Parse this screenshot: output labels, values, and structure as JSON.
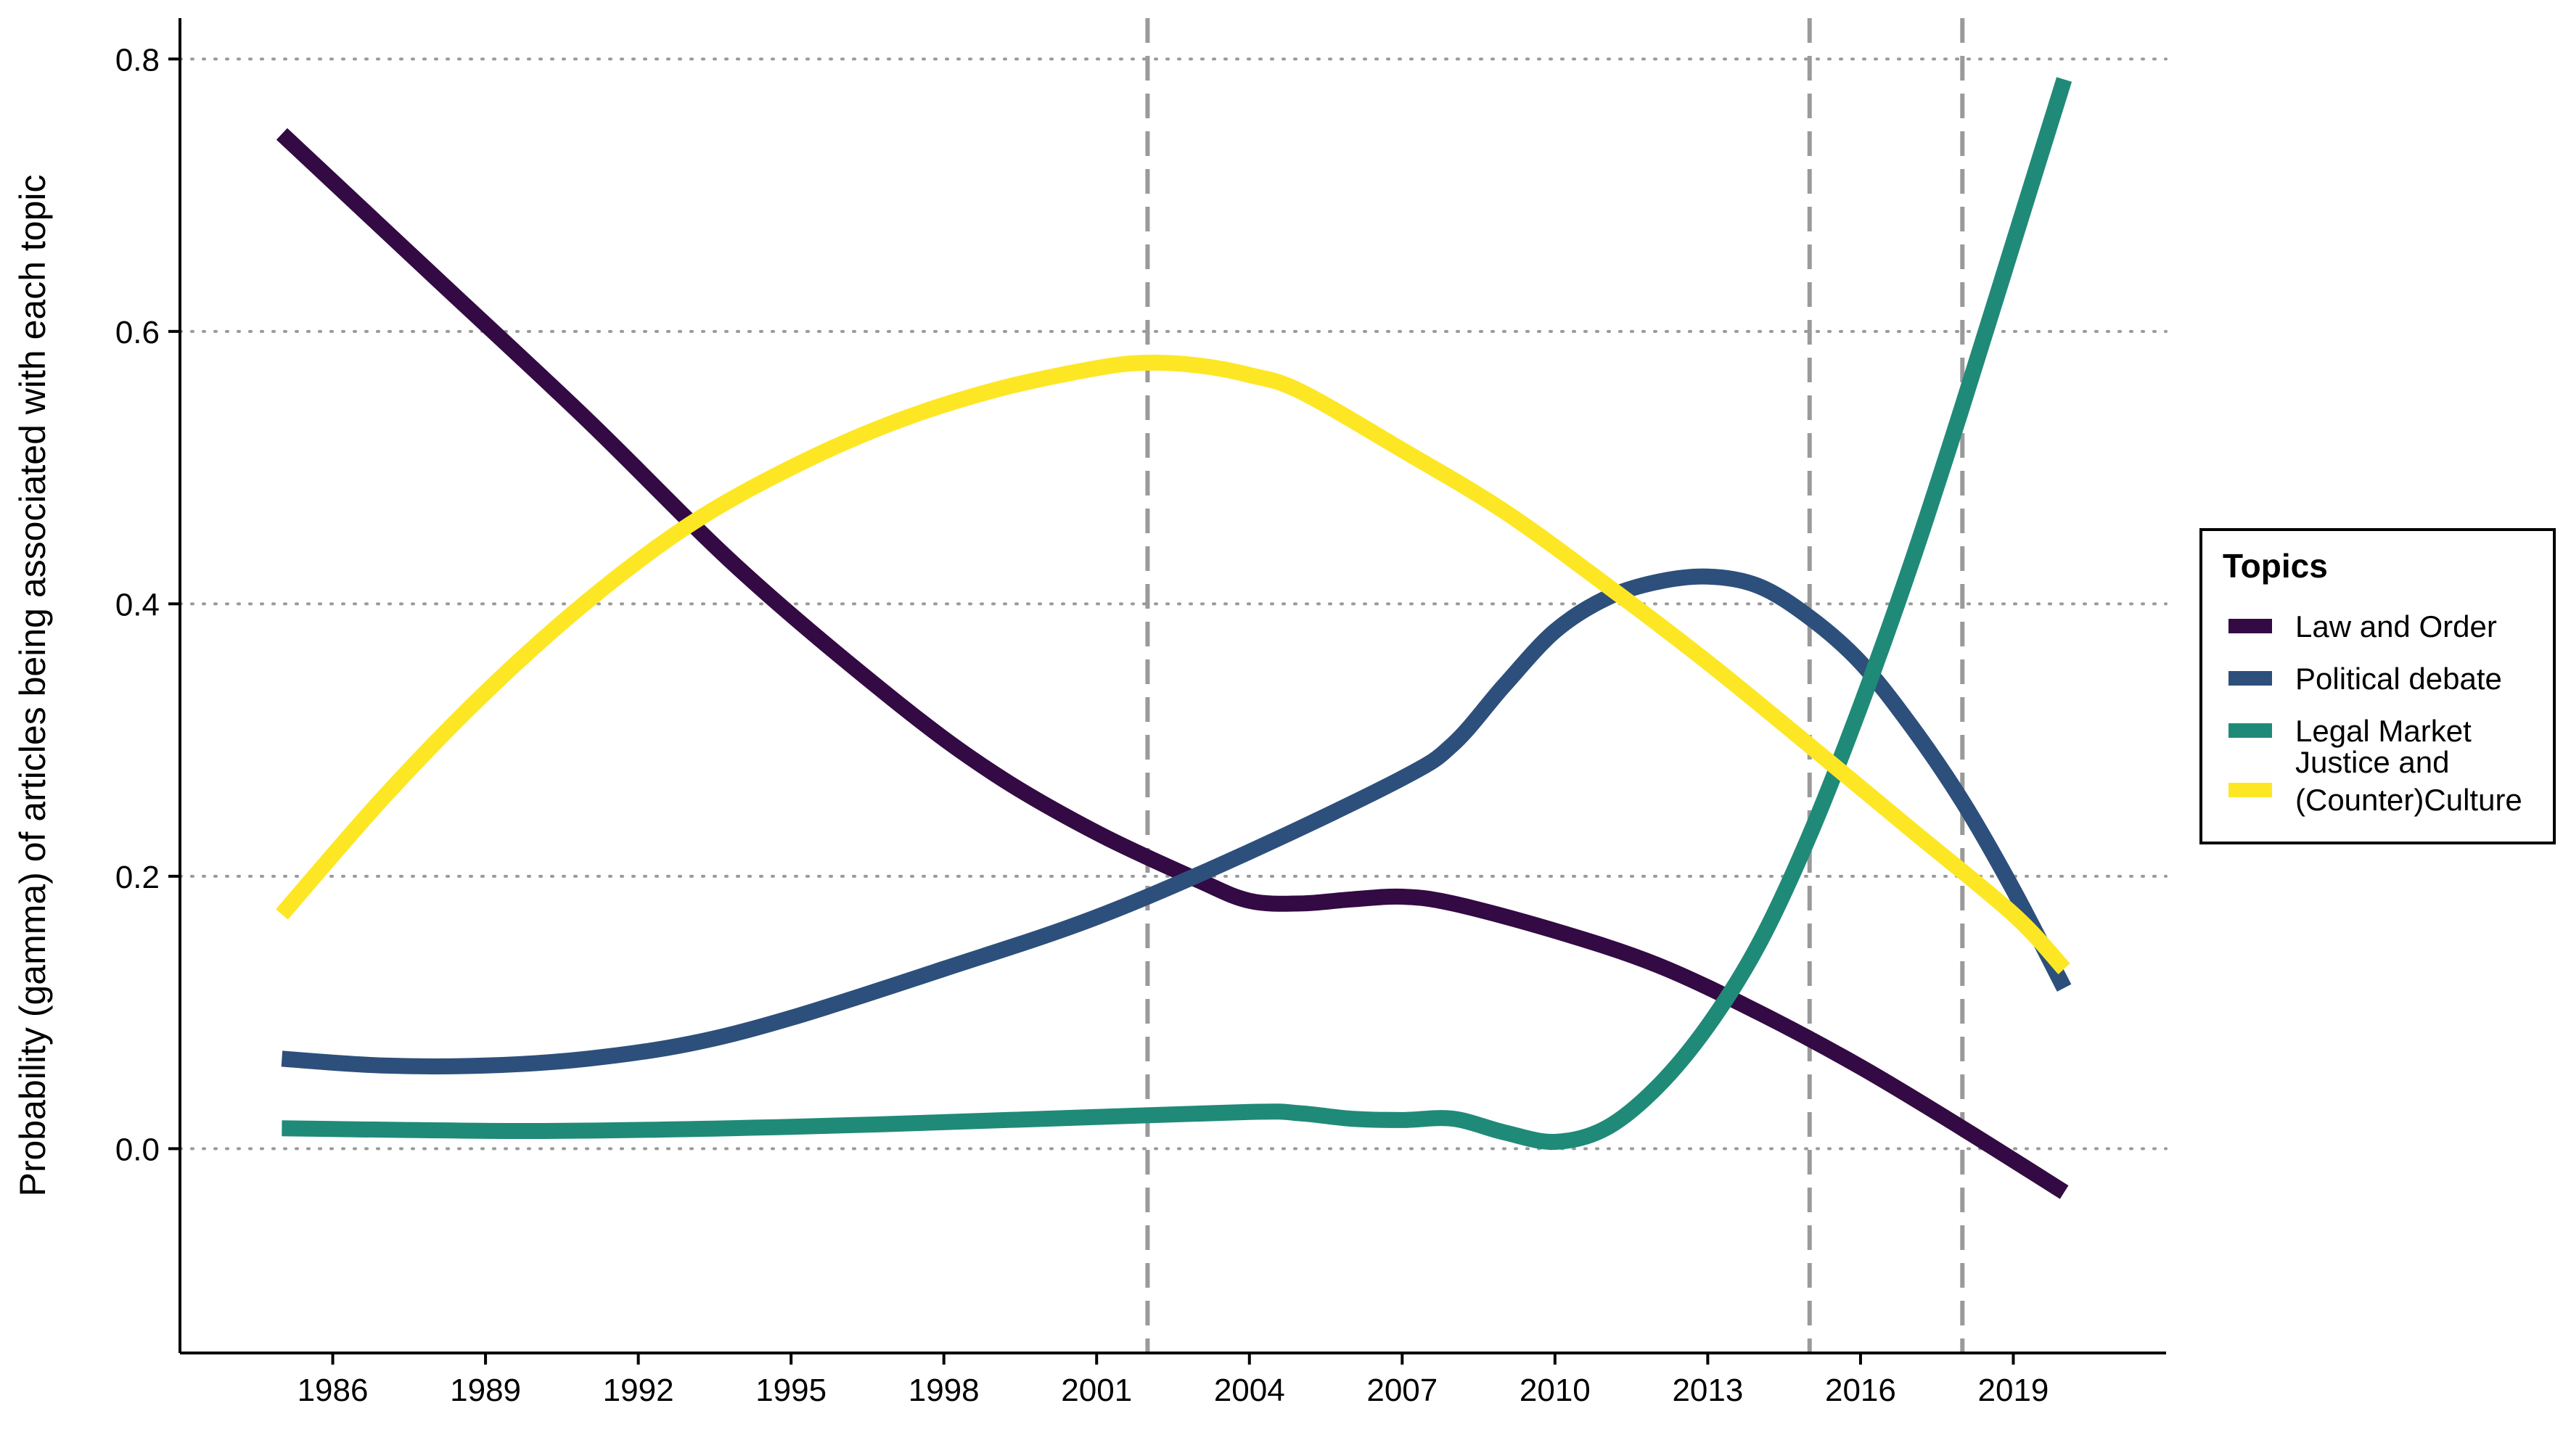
{
  "chart_data": {
    "type": "line",
    "title": "",
    "xlabel": "",
    "ylabel": "Probability (gamma) of articles being associated with each topic",
    "xlim": [
      1983,
      2022
    ],
    "ylim": [
      -0.15,
      0.83
    ],
    "x_ticks": [
      1986,
      1989,
      1992,
      1995,
      1998,
      2001,
      2004,
      2007,
      2010,
      2013,
      2016,
      2019
    ],
    "y_ticks": [
      0.0,
      0.2,
      0.4,
      0.6,
      0.8
    ],
    "y_tick_labels": [
      "0.0",
      "0.2",
      "0.4",
      "0.6",
      "0.8"
    ],
    "grid": "horizontal dotted at y ticks",
    "vertical_reference_lines": [
      2002,
      2015,
      2018
    ],
    "legend": {
      "title": "Topics",
      "placement": "right",
      "entries": [
        {
          "label": "Law and Order",
          "color": "#330a43"
        },
        {
          "label": "Political debate",
          "color": "#2d4f7b"
        },
        {
          "label": "Legal Market",
          "color": "#1f8a78"
        },
        {
          "label": "Justice and\n(Counter)Culture",
          "color": "#fde725"
        }
      ]
    },
    "series": [
      {
        "name": "Law and Order",
        "color": "#330a43",
        "x": [
          1985,
          1988,
          1991,
          1994,
          1997,
          1999,
          2001,
          2003,
          2004,
          2005,
          2006,
          2007,
          2008,
          2010,
          2012,
          2014,
          2016,
          2018,
          2020
        ],
        "y": [
          0.745,
          0.64,
          0.535,
          0.425,
          0.33,
          0.275,
          0.232,
          0.197,
          0.182,
          0.18,
          0.183,
          0.185,
          0.18,
          0.16,
          0.135,
          0.1,
          0.06,
          0.015,
          -0.032
        ]
      },
      {
        "name": "Political debate",
        "color": "#2d4f7b",
        "x": [
          1985,
          1987,
          1989,
          1991,
          1993,
          1995,
          1998,
          2001,
          2004,
          2007,
          2008,
          2009,
          2010,
          2011,
          2012,
          2013,
          2014,
          2015,
          2016,
          2017,
          2018,
          2019,
          2020
        ],
        "y": [
          0.066,
          0.061,
          0.061,
          0.066,
          0.077,
          0.096,
          0.132,
          0.17,
          0.218,
          0.272,
          0.297,
          0.34,
          0.38,
          0.404,
          0.416,
          0.42,
          0.413,
          0.39,
          0.357,
          0.31,
          0.255,
          0.19,
          0.118
        ]
      },
      {
        "name": "Legal Market",
        "color": "#1f8a78",
        "x": [
          1985,
          1990,
          1995,
          2000,
          2004,
          2005,
          2006,
          2007,
          2008,
          2009,
          2010,
          2011,
          2012,
          2013,
          2014,
          2015,
          2016,
          2017,
          2018,
          2019,
          2020
        ],
        "y": [
          0.015,
          0.013,
          0.016,
          0.022,
          0.027,
          0.026,
          0.022,
          0.021,
          0.022,
          0.012,
          0.005,
          0.015,
          0.045,
          0.09,
          0.15,
          0.23,
          0.325,
          0.43,
          0.545,
          0.665,
          0.785
        ]
      },
      {
        "name": "Justice and (Counter)Culture",
        "color": "#fde725",
        "x": [
          1985,
          1987,
          1989,
          1991,
          1993,
          1995,
          1997,
          1999,
          2001,
          2002,
          2003,
          2004,
          2005,
          2007,
          2009,
          2011,
          2013,
          2015,
          2017,
          2019,
          2020
        ],
        "y": [
          0.172,
          0.258,
          0.335,
          0.402,
          0.458,
          0.5,
          0.533,
          0.557,
          0.573,
          0.577,
          0.575,
          0.568,
          0.556,
          0.513,
          0.468,
          0.414,
          0.357,
          0.296,
          0.234,
          0.172,
          0.132
        ]
      }
    ]
  }
}
